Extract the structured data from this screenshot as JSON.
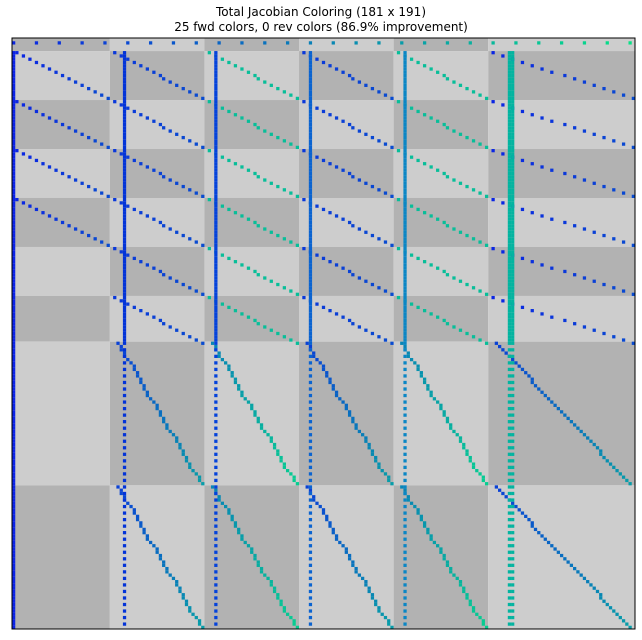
{
  "chart_data": {
    "type": "heatmap",
    "title": "Total Jacobian Coloring (181 x 191)",
    "subtitle": "25 fwd colors, 0 rev colors (86.9% improvement)",
    "n_rows": 181,
    "n_cols": 191,
    "row_blocks": [
      0,
      4,
      19,
      34,
      49,
      64,
      79,
      93,
      137,
      181
    ],
    "col_blocks": [
      0,
      30,
      59,
      88,
      117,
      146,
      191
    ],
    "colors": {
      "shade_dark": "#b2b2b2",
      "shade_light": "#cdcdcd",
      "dense_col_1": "#0233d8",
      "dense_col_2": "#0342db",
      "dense_col_3": "#0a63d0",
      "dense_col_4": "#0a86c5",
      "dense_col_5": "#03b4a0",
      "first_col": "#0a22e8",
      "diag_start": "#0a25e3",
      "diag_end": "#07e486",
      "frame": "#000000"
    },
    "dense_columns": [
      34,
      62,
      91,
      120,
      152,
      153
    ]
  }
}
